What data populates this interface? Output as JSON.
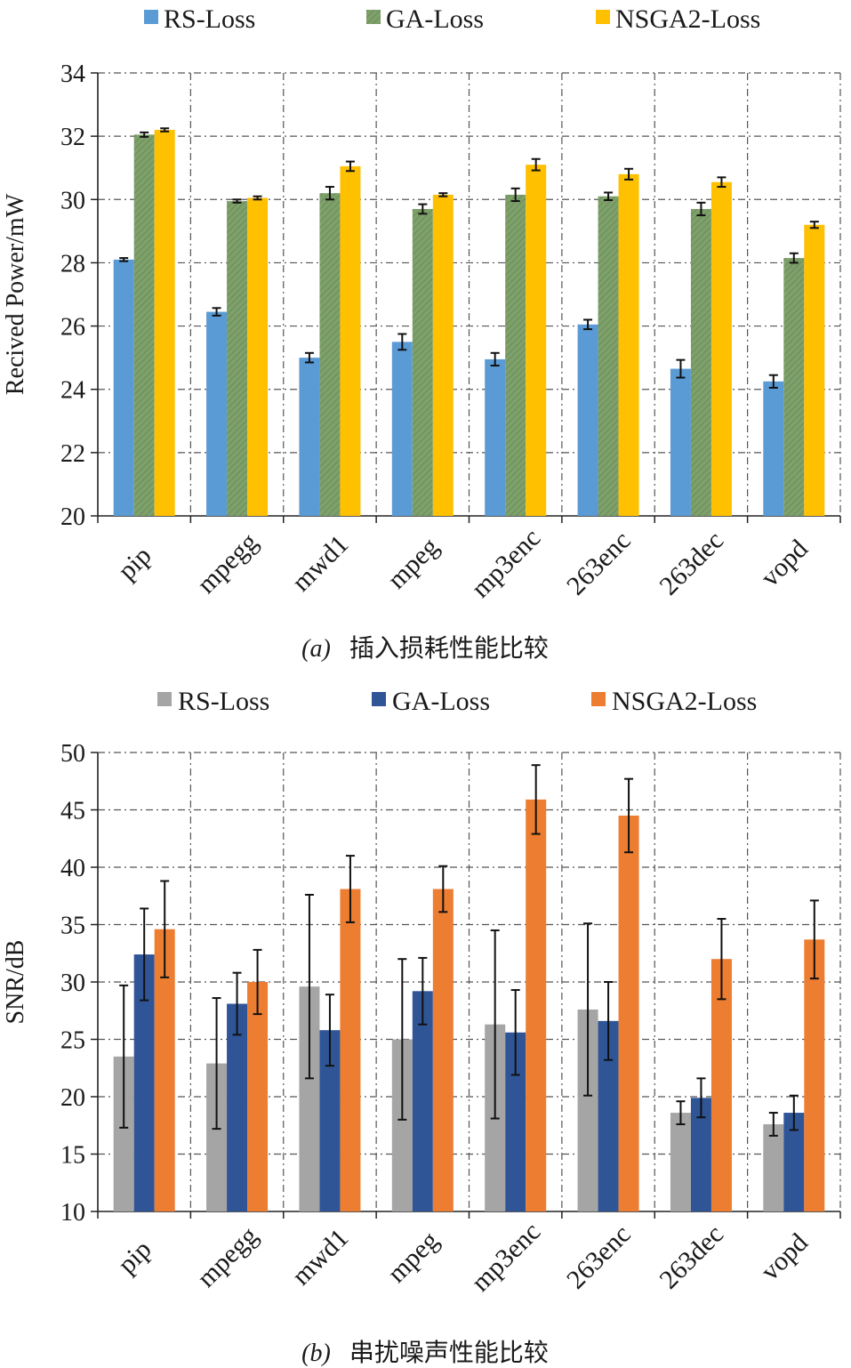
{
  "figure": {
    "panels": [
      {
        "caption_letter": "(a)",
        "caption_text": "插入损耗性能比较"
      },
      {
        "caption_letter": "(b)",
        "caption_text": "串扰噪声性能比较"
      }
    ]
  },
  "chart_data": [
    {
      "type": "bar",
      "title": "",
      "xlabel": "",
      "ylabel": "Recived Power/mW",
      "ylim": [
        20,
        34
      ],
      "yticks": [
        20,
        22,
        24,
        26,
        28,
        30,
        32,
        34
      ],
      "grid": true,
      "legend_position": "top",
      "categories": [
        "pip",
        "mpegg",
        "mwd1",
        "mpeg",
        "mp3enc",
        "263enc",
        "263dec",
        "vopd"
      ],
      "series": [
        {
          "name": "RS-Loss",
          "color": "#5b9bd5",
          "values": [
            28.1,
            26.45,
            25.0,
            25.5,
            24.95,
            26.05,
            24.65,
            24.25
          ],
          "errors": [
            0.05,
            0.12,
            0.15,
            0.25,
            0.2,
            0.15,
            0.28,
            0.2
          ]
        },
        {
          "name": "GA-Loss",
          "color": "#7ea06a",
          "values": [
            32.05,
            29.95,
            30.2,
            29.7,
            30.15,
            30.1,
            29.7,
            28.15
          ],
          "errors": [
            0.07,
            0.05,
            0.2,
            0.15,
            0.2,
            0.12,
            0.2,
            0.15
          ]
        },
        {
          "name": "NSGA2-Loss",
          "color": "#ffc000",
          "values": [
            32.2,
            30.05,
            31.05,
            30.15,
            31.1,
            30.8,
            30.55,
            29.2
          ],
          "errors": [
            0.05,
            0.05,
            0.15,
            0.05,
            0.18,
            0.17,
            0.15,
            0.1
          ]
        }
      ]
    },
    {
      "type": "bar",
      "title": "",
      "xlabel": "",
      "ylabel": "SNR/dB",
      "ylim": [
        10,
        50
      ],
      "yticks": [
        10,
        15,
        20,
        25,
        30,
        35,
        40,
        45,
        50
      ],
      "grid": true,
      "legend_position": "top",
      "categories": [
        "pip",
        "mpegg",
        "mwd1",
        "mpeg",
        "mp3enc",
        "263enc",
        "263dec",
        "vopd"
      ],
      "series": [
        {
          "name": "RS-Loss",
          "color": "#a5a5a5",
          "values": [
            23.5,
            22.9,
            29.6,
            25.0,
            26.3,
            27.6,
            18.6,
            17.6
          ],
          "errors": [
            6.2,
            5.7,
            8.0,
            7.0,
            8.2,
            7.5,
            1.0,
            1.0
          ]
        },
        {
          "name": "GA-Loss",
          "color": "#2f5597",
          "values": [
            32.4,
            28.1,
            25.8,
            29.2,
            25.6,
            26.6,
            19.9,
            18.6
          ],
          "errors": [
            4.0,
            2.7,
            3.1,
            2.9,
            3.7,
            3.4,
            1.7,
            1.5
          ]
        },
        {
          "name": "NSGA2-Loss",
          "color": "#ed7d31",
          "values": [
            34.6,
            30.0,
            38.1,
            38.1,
            45.9,
            44.5,
            32.0,
            33.7
          ],
          "errors": [
            4.2,
            2.8,
            2.9,
            2.0,
            3.0,
            3.2,
            3.5,
            3.4
          ]
        }
      ]
    }
  ]
}
